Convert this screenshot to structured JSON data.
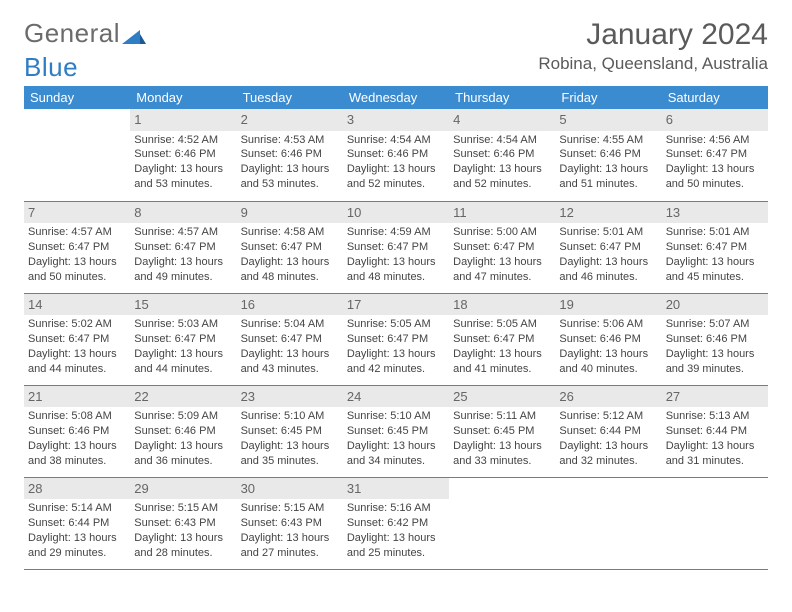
{
  "logo": {
    "text_a": "General",
    "text_b": "Blue"
  },
  "title": "January 2024",
  "location": "Robina, Queensland, Australia",
  "colors": {
    "header_bg": "#3a8bd0",
    "header_fg": "#ffffff",
    "daynum_bg": "#e9e9e9",
    "daynum_fg": "#666666",
    "rule": "#3a8bd0",
    "text": "#444444",
    "title": "#5a5a5a"
  },
  "weekdays": [
    "Sunday",
    "Monday",
    "Tuesday",
    "Wednesday",
    "Thursday",
    "Friday",
    "Saturday"
  ],
  "weeks": [
    [
      null,
      {
        "d": "1",
        "sr": "4:52 AM",
        "ss": "6:46 PM",
        "dl": "13 hours and 53 minutes."
      },
      {
        "d": "2",
        "sr": "4:53 AM",
        "ss": "6:46 PM",
        "dl": "13 hours and 53 minutes."
      },
      {
        "d": "3",
        "sr": "4:54 AM",
        "ss": "6:46 PM",
        "dl": "13 hours and 52 minutes."
      },
      {
        "d": "4",
        "sr": "4:54 AM",
        "ss": "6:46 PM",
        "dl": "13 hours and 52 minutes."
      },
      {
        "d": "5",
        "sr": "4:55 AM",
        "ss": "6:46 PM",
        "dl": "13 hours and 51 minutes."
      },
      {
        "d": "6",
        "sr": "4:56 AM",
        "ss": "6:47 PM",
        "dl": "13 hours and 50 minutes."
      }
    ],
    [
      {
        "d": "7",
        "sr": "4:57 AM",
        "ss": "6:47 PM",
        "dl": "13 hours and 50 minutes."
      },
      {
        "d": "8",
        "sr": "4:57 AM",
        "ss": "6:47 PM",
        "dl": "13 hours and 49 minutes."
      },
      {
        "d": "9",
        "sr": "4:58 AM",
        "ss": "6:47 PM",
        "dl": "13 hours and 48 minutes."
      },
      {
        "d": "10",
        "sr": "4:59 AM",
        "ss": "6:47 PM",
        "dl": "13 hours and 48 minutes."
      },
      {
        "d": "11",
        "sr": "5:00 AM",
        "ss": "6:47 PM",
        "dl": "13 hours and 47 minutes."
      },
      {
        "d": "12",
        "sr": "5:01 AM",
        "ss": "6:47 PM",
        "dl": "13 hours and 46 minutes."
      },
      {
        "d": "13",
        "sr": "5:01 AM",
        "ss": "6:47 PM",
        "dl": "13 hours and 45 minutes."
      }
    ],
    [
      {
        "d": "14",
        "sr": "5:02 AM",
        "ss": "6:47 PM",
        "dl": "13 hours and 44 minutes."
      },
      {
        "d": "15",
        "sr": "5:03 AM",
        "ss": "6:47 PM",
        "dl": "13 hours and 44 minutes."
      },
      {
        "d": "16",
        "sr": "5:04 AM",
        "ss": "6:47 PM",
        "dl": "13 hours and 43 minutes."
      },
      {
        "d": "17",
        "sr": "5:05 AM",
        "ss": "6:47 PM",
        "dl": "13 hours and 42 minutes."
      },
      {
        "d": "18",
        "sr": "5:05 AM",
        "ss": "6:47 PM",
        "dl": "13 hours and 41 minutes."
      },
      {
        "d": "19",
        "sr": "5:06 AM",
        "ss": "6:46 PM",
        "dl": "13 hours and 40 minutes."
      },
      {
        "d": "20",
        "sr": "5:07 AM",
        "ss": "6:46 PM",
        "dl": "13 hours and 39 minutes."
      }
    ],
    [
      {
        "d": "21",
        "sr": "5:08 AM",
        "ss": "6:46 PM",
        "dl": "13 hours and 38 minutes."
      },
      {
        "d": "22",
        "sr": "5:09 AM",
        "ss": "6:46 PM",
        "dl": "13 hours and 36 minutes."
      },
      {
        "d": "23",
        "sr": "5:10 AM",
        "ss": "6:45 PM",
        "dl": "13 hours and 35 minutes."
      },
      {
        "d": "24",
        "sr": "5:10 AM",
        "ss": "6:45 PM",
        "dl": "13 hours and 34 minutes."
      },
      {
        "d": "25",
        "sr": "5:11 AM",
        "ss": "6:45 PM",
        "dl": "13 hours and 33 minutes."
      },
      {
        "d": "26",
        "sr": "5:12 AM",
        "ss": "6:44 PM",
        "dl": "13 hours and 32 minutes."
      },
      {
        "d": "27",
        "sr": "5:13 AM",
        "ss": "6:44 PM",
        "dl": "13 hours and 31 minutes."
      }
    ],
    [
      {
        "d": "28",
        "sr": "5:14 AM",
        "ss": "6:44 PM",
        "dl": "13 hours and 29 minutes."
      },
      {
        "d": "29",
        "sr": "5:15 AM",
        "ss": "6:43 PM",
        "dl": "13 hours and 28 minutes."
      },
      {
        "d": "30",
        "sr": "5:15 AM",
        "ss": "6:43 PM",
        "dl": "13 hours and 27 minutes."
      },
      {
        "d": "31",
        "sr": "5:16 AM",
        "ss": "6:42 PM",
        "dl": "13 hours and 25 minutes."
      },
      null,
      null,
      null
    ]
  ],
  "labels": {
    "sunrise": "Sunrise:",
    "sunset": "Sunset:",
    "daylight": "Daylight:"
  }
}
